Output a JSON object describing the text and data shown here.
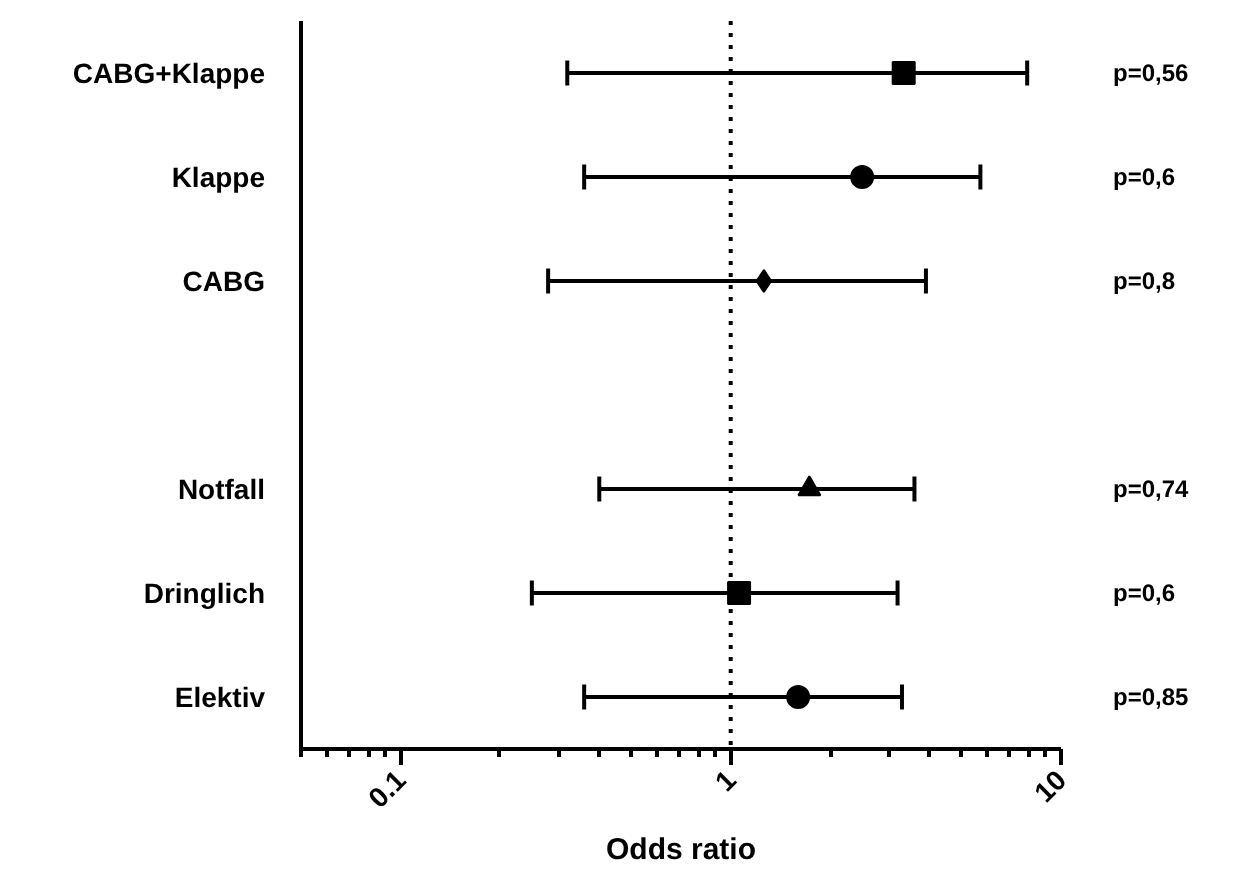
{
  "chart_data": {
    "type": "scatter",
    "orientation": "horizontal",
    "xlabel": "Odds ratio",
    "log": "x",
    "categories": [
      "CABG+Klappe",
      "Klappe",
      "CABG",
      null,
      "Notfall",
      "Dringlich",
      "Elektiv"
    ],
    "xlim": [
      0.05,
      10
    ],
    "xticks": [
      0.1,
      1,
      10
    ],
    "grid": false,
    "series": [
      {
        "color": "#000000",
        "marker": "square",
        "values": [
          3.34,
          null,
          null,
          null,
          null,
          null,
          null
        ],
        "errors": [
          [
            0.32,
            7.9
          ],
          null,
          null,
          null,
          null,
          null,
          null
        ]
      },
      {
        "color": "#000000",
        "marker": "circle",
        "values": [
          null,
          2.5,
          null,
          null,
          null,
          null,
          null
        ],
        "errors": [
          null,
          [
            0.36,
            5.7
          ],
          null,
          null,
          null,
          null,
          null
        ]
      },
      {
        "color": "#000000",
        "marker": "diamond",
        "values": [
          null,
          null,
          1.26,
          null,
          null,
          null,
          null
        ],
        "errors": [
          null,
          null,
          [
            0.28,
            3.9
          ],
          null,
          null,
          null,
          null
        ]
      },
      {
        "color": "#000000",
        "marker": "triangle",
        "values": [
          null,
          null,
          null,
          null,
          1.73,
          null,
          null
        ],
        "errors": [
          null,
          null,
          null,
          null,
          [
            0.4,
            3.6
          ],
          null,
          null
        ]
      },
      {
        "color": "#000000",
        "marker": "square",
        "values": [
          null,
          null,
          null,
          null,
          null,
          1.06,
          null
        ],
        "errors": [
          null,
          null,
          null,
          null,
          null,
          [
            0.25,
            3.2
          ],
          null
        ]
      },
      {
        "color": "#000000",
        "marker": "circle",
        "values": [
          null,
          null,
          null,
          null,
          null,
          null,
          1.6
        ],
        "errors": [
          null,
          null,
          null,
          null,
          null,
          null,
          [
            0.36,
            3.3
          ]
        ]
      }
    ],
    "ref_lines": [
      {
        "axis": "x",
        "value": 1,
        "line_style": "dotted",
        "color": "#000000"
      }
    ],
    "annotations": [
      "p=0,56",
      "p=0,6",
      "p=0,8",
      "p=0,74",
      "p=0,6",
      "p=0,85"
    ]
  }
}
